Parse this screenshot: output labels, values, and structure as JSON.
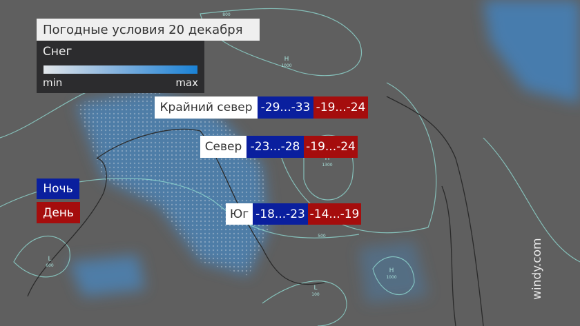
{
  "title": "Погодные условия 20 декабря",
  "legend": {
    "label": "Снег",
    "min": "min",
    "max": "max",
    "gradient": [
      "#e2e6ea",
      "#1a82d6"
    ]
  },
  "key": {
    "night": "Ночь",
    "day": "День"
  },
  "regions": [
    {
      "name": "Крайний север",
      "night": "-29...-33",
      "day": "-19...-24"
    },
    {
      "name": "Север",
      "night": "-23...-28",
      "day": "-19...-24"
    },
    {
      "name": "Юг",
      "night": "-18...-23",
      "day": "-14...-19"
    }
  ],
  "map_labels": {
    "h1": "H",
    "h1v": "1000",
    "h2": "H",
    "h2v": "1300",
    "h3": "H",
    "h3v": "1000",
    "l1": "L",
    "l1v": "600",
    "l2": "L",
    "l2v": "100",
    "iso1": "500",
    "iso2": "800"
  },
  "watermark": "windy.com",
  "colors": {
    "night": "#0a1f9e",
    "day": "#a50d0d",
    "snow": "#3a8fd6",
    "isobar": "#8fd8d0"
  }
}
